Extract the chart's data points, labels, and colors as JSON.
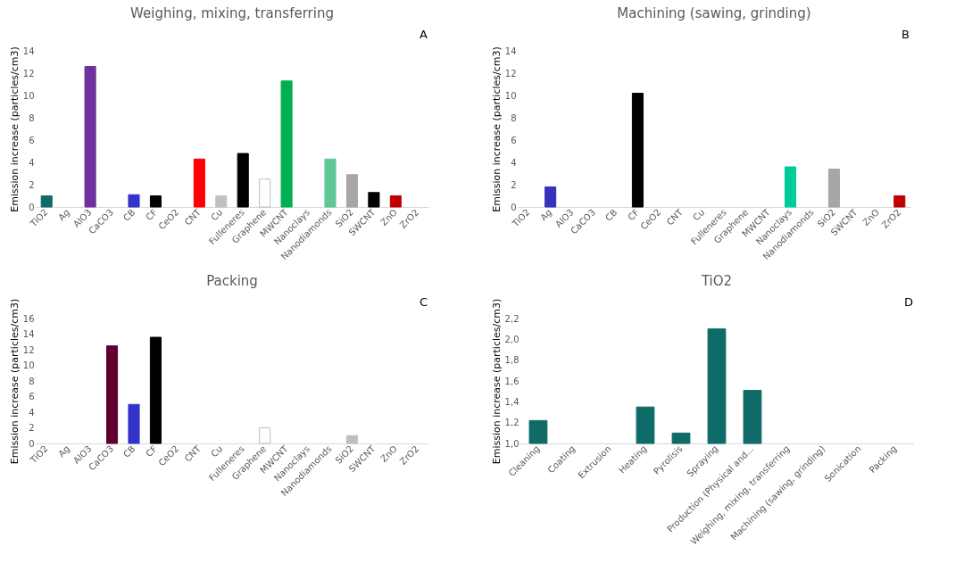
{
  "chart_data": [
    {
      "type": "bar",
      "title": "Weighing, mixing, transferring",
      "ylabel": "Emission increase (particles/cm3)",
      "annotations": [
        "A"
      ],
      "categories": [
        "TiO2",
        "Ag",
        "AlO3",
        "CaCO3",
        "CB",
        "CF",
        "CeO2",
        "CNT",
        "Cu",
        "Fulleneres",
        "Graphene",
        "MWCNT",
        "Nanoclays",
        "Nanodiamonds",
        "SiO2",
        "SWCNT",
        "ZnO",
        "ZrO2"
      ],
      "values": [
        1,
        null,
        12.6,
        null,
        1.1,
        1,
        null,
        4.3,
        1,
        4.8,
        2.5,
        11.3,
        null,
        4.3,
        2.9,
        1.3,
        1,
        null
      ],
      "colors": [
        "#0e6b67",
        null,
        "#7030a0",
        null,
        "#3333cc",
        "#000000",
        null,
        "#ff0000",
        "#c0c0c0",
        "#000000",
        "#ffffff",
        "#00b050",
        null,
        "#5fc896",
        "#a6a6a6",
        "#000000",
        "#c00000",
        null
      ],
      "ylim": [
        0,
        14
      ],
      "yticks": [
        0,
        2,
        4,
        6,
        8,
        10,
        12,
        14
      ]
    },
    {
      "type": "bar",
      "title": "Machining (sawing, grinding)",
      "ylabel": "Emission increase (particles/cm3)",
      "annotations": [
        "B"
      ],
      "categories": [
        "TiO2",
        "Ag",
        "AlO3",
        "CaCO3",
        "CB",
        "CF",
        "CeO2",
        "CNT",
        "Cu",
        "Fulleneres",
        "Graphene",
        "MWCNT",
        "Nanoclays",
        "Nanodiamonds",
        "SiO2",
        "SWCNT",
        "ZnO",
        "ZrO2"
      ],
      "values": [
        null,
        1.8,
        null,
        null,
        null,
        10.2,
        null,
        null,
        null,
        null,
        null,
        null,
        3.6,
        null,
        3.4,
        null,
        null,
        1
      ],
      "colors": [
        null,
        "#3333bb",
        null,
        null,
        null,
        "#000000",
        null,
        null,
        null,
        null,
        null,
        null,
        "#00cc99",
        null,
        "#a6a6a6",
        null,
        null,
        "#c00000"
      ],
      "ylim": [
        0,
        14
      ],
      "yticks": [
        0,
        2,
        4,
        6,
        8,
        10,
        12,
        14
      ]
    },
    {
      "type": "bar",
      "title": "Packing",
      "ylabel": "Emission increase (particles/cm3)",
      "annotations": [
        "C"
      ],
      "categories": [
        "TiO2",
        "Ag",
        "AlO3",
        "CaCO3",
        "CB",
        "CF",
        "CeO2",
        "CNT",
        "Cu",
        "Fulleneres",
        "Graphene",
        "MWCNT",
        "Nanoclays",
        "Nanodiamonds",
        "SiO2",
        "SWCNT",
        "ZnO",
        "ZrO2"
      ],
      "values": [
        null,
        null,
        null,
        12.5,
        5,
        13.6,
        null,
        null,
        null,
        null,
        2,
        null,
        null,
        null,
        1,
        null,
        null,
        null
      ],
      "colors": [
        null,
        null,
        null,
        "#600030",
        "#3333cc",
        "#000000",
        null,
        null,
        null,
        null,
        "#ffffff",
        null,
        null,
        null,
        "#bfbfbf",
        null,
        null,
        null
      ],
      "ylim": [
        0,
        16
      ],
      "yticks": [
        0,
        2,
        4,
        6,
        8,
        10,
        12,
        14,
        16
      ]
    },
    {
      "type": "bar",
      "title": "TiO2",
      "ylabel": "Emission increase (particles/cm3)",
      "annotations": [
        "D"
      ],
      "categories": [
        "Cleaning",
        "Coating",
        "Extrusion",
        "Heating",
        "Pyrolisis",
        "Spraying",
        "Production (Physical and...",
        "Weighing, mixing, transferring",
        "Machining (sawing, grinding)",
        "Sonication",
        "Packing"
      ],
      "values": [
        1.22,
        null,
        null,
        1.35,
        1.1,
        2.1,
        1.51,
        null,
        null,
        null,
        null
      ],
      "colors": [
        "#0e6b67",
        null,
        null,
        "#0e6b67",
        "#0e6b67",
        "#0e6b67",
        "#0e6b67",
        null,
        null,
        null,
        null
      ],
      "ylim": [
        1,
        2.2
      ],
      "yticks": [
        {
          "value": 1,
          "label": "1,0"
        },
        {
          "value": 1.2,
          "label": "1,2"
        },
        {
          "value": 1.4,
          "label": "1,4"
        },
        {
          "value": 1.6,
          "label": "1,6"
        },
        {
          "value": 1.8,
          "label": "1,8"
        },
        {
          "value": 2,
          "label": "2,0"
        },
        {
          "value": 2.2,
          "label": "2,2"
        }
      ]
    }
  ]
}
